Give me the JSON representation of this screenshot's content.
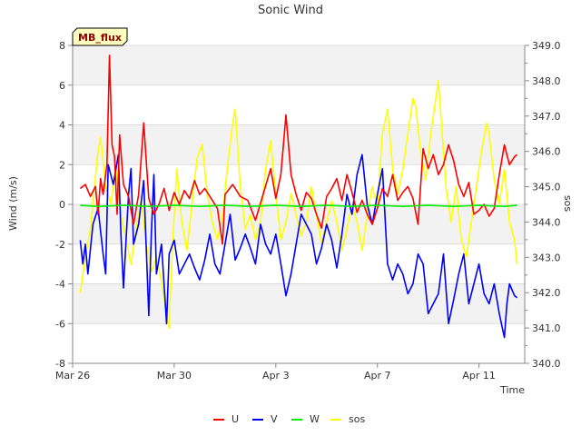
{
  "chart_data": {
    "type": "line",
    "title": "Sonic Wind",
    "xlabel": "Time",
    "ylabel": "Wind (m/s)",
    "y2label": "sos",
    "badge": "MB_flux",
    "x_ticks": [
      "Mar 26",
      "Mar 30",
      "Apr 3",
      "Apr 7",
      "Apr 11"
    ],
    "x_tick_days": [
      0,
      4,
      8,
      12,
      16
    ],
    "xlim_days": [
      0,
      17.8
    ],
    "ylim": [
      -8,
      8
    ],
    "y_ticks": [
      -8,
      -6,
      -4,
      -2,
      0,
      2,
      4,
      6,
      8
    ],
    "y2lim": [
      340.0,
      349.0
    ],
    "y2_ticks": [
      "340.0",
      "341.0",
      "342.0",
      "343.0",
      "344.0",
      "345.0",
      "346.0",
      "347.0",
      "348.0",
      "349.0"
    ],
    "y2_tick_values": [
      340,
      341,
      342,
      343,
      344,
      345,
      346,
      347,
      348,
      349
    ],
    "grid": "horizontal bands",
    "legend_position": "bottom-center",
    "series": [
      {
        "name": "U",
        "color": "#ff0000",
        "axis": "left",
        "points": [
          [
            0.3,
            0.8
          ],
          [
            0.5,
            1.0
          ],
          [
            0.7,
            0.4
          ],
          [
            0.9,
            0.9
          ],
          [
            1.0,
            -0.5
          ],
          [
            1.1,
            1.3
          ],
          [
            1.2,
            0.5
          ],
          [
            1.35,
            2.0
          ],
          [
            1.45,
            7.5
          ],
          [
            1.55,
            3.0
          ],
          [
            1.65,
            2.4
          ],
          [
            1.75,
            -0.5
          ],
          [
            1.85,
            3.5
          ],
          [
            2.0,
            1.0
          ],
          [
            2.2,
            0.4
          ],
          [
            2.4,
            -1.0
          ],
          [
            2.6,
            0.5
          ],
          [
            2.8,
            4.1
          ],
          [
            3.0,
            0.3
          ],
          [
            3.2,
            -0.5
          ],
          [
            3.4,
            0.0
          ],
          [
            3.6,
            0.8
          ],
          [
            3.8,
            -0.3
          ],
          [
            4.0,
            0.6
          ],
          [
            4.2,
            0.0
          ],
          [
            4.4,
            0.7
          ],
          [
            4.6,
            0.3
          ],
          [
            4.8,
            1.2
          ],
          [
            5.0,
            0.5
          ],
          [
            5.2,
            0.8
          ],
          [
            5.5,
            0.2
          ],
          [
            5.7,
            -0.2
          ],
          [
            5.9,
            -2.0
          ],
          [
            6.0,
            0.5
          ],
          [
            6.3,
            1.0
          ],
          [
            6.6,
            0.4
          ],
          [
            6.9,
            0.2
          ],
          [
            7.2,
            -0.8
          ],
          [
            7.5,
            0.5
          ],
          [
            7.8,
            1.8
          ],
          [
            8.0,
            0.3
          ],
          [
            8.2,
            1.5
          ],
          [
            8.4,
            4.5
          ],
          [
            8.6,
            1.5
          ],
          [
            8.8,
            0.5
          ],
          [
            9.0,
            -0.3
          ],
          [
            9.2,
            0.6
          ],
          [
            9.4,
            0.3
          ],
          [
            9.6,
            -0.5
          ],
          [
            9.8,
            -1.2
          ],
          [
            10.0,
            0.4
          ],
          [
            10.2,
            0.8
          ],
          [
            10.4,
            1.3
          ],
          [
            10.6,
            0.2
          ],
          [
            10.8,
            1.5
          ],
          [
            11.0,
            0.6
          ],
          [
            11.2,
            -0.4
          ],
          [
            11.4,
            0.2
          ],
          [
            11.6,
            -0.5
          ],
          [
            11.8,
            -1.0
          ],
          [
            12.0,
            -0.2
          ],
          [
            12.2,
            0.8
          ],
          [
            12.4,
            0.4
          ],
          [
            12.6,
            1.5
          ],
          [
            12.8,
            0.2
          ],
          [
            13.0,
            0.6
          ],
          [
            13.2,
            0.9
          ],
          [
            13.4,
            0.3
          ],
          [
            13.6,
            -1.0
          ],
          [
            13.8,
            2.8
          ],
          [
            14.0,
            1.8
          ],
          [
            14.2,
            2.5
          ],
          [
            14.4,
            1.5
          ],
          [
            14.6,
            2.0
          ],
          [
            14.8,
            3.0
          ],
          [
            15.0,
            2.2
          ],
          [
            15.2,
            1.0
          ],
          [
            15.4,
            0.4
          ],
          [
            15.6,
            1.1
          ],
          [
            15.8,
            -0.5
          ],
          [
            16.0,
            -0.3
          ],
          [
            16.2,
            0.0
          ],
          [
            16.4,
            -0.6
          ],
          [
            16.6,
            -0.2
          ],
          [
            16.8,
            1.5
          ],
          [
            17.0,
            3.0
          ],
          [
            17.2,
            2.0
          ],
          [
            17.4,
            2.4
          ],
          [
            17.5,
            2.5
          ]
        ]
      },
      {
        "name": "V",
        "color": "#0000ff",
        "axis": "left",
        "points": [
          [
            0.3,
            -1.8
          ],
          [
            0.4,
            -3.0
          ],
          [
            0.5,
            -2.0
          ],
          [
            0.6,
            -3.5
          ],
          [
            0.8,
            -1.0
          ],
          [
            1.0,
            -0.2
          ],
          [
            1.2,
            -2.5
          ],
          [
            1.3,
            -3.5
          ],
          [
            1.4,
            2.0
          ],
          [
            1.6,
            1.0
          ],
          [
            1.8,
            2.5
          ],
          [
            1.9,
            -1.5
          ],
          [
            2.0,
            -4.2
          ],
          [
            2.2,
            0.5
          ],
          [
            2.3,
            1.8
          ],
          [
            2.4,
            -2.0
          ],
          [
            2.6,
            -1.0
          ],
          [
            2.8,
            1.2
          ],
          [
            3.0,
            -5.6
          ],
          [
            3.1,
            -1.5
          ],
          [
            3.2,
            1.5
          ],
          [
            3.3,
            -3.5
          ],
          [
            3.5,
            -2.0
          ],
          [
            3.7,
            -6.0
          ],
          [
            3.8,
            -2.5
          ],
          [
            4.0,
            -1.8
          ],
          [
            4.2,
            -3.5
          ],
          [
            4.4,
            -3.0
          ],
          [
            4.6,
            -2.5
          ],
          [
            4.8,
            -3.2
          ],
          [
            5.0,
            -3.8
          ],
          [
            5.2,
            -2.8
          ],
          [
            5.4,
            -1.5
          ],
          [
            5.6,
            -3.0
          ],
          [
            5.8,
            -3.5
          ],
          [
            6.0,
            -2.0
          ],
          [
            6.2,
            -0.5
          ],
          [
            6.4,
            -2.8
          ],
          [
            6.6,
            -2.2
          ],
          [
            6.8,
            -1.5
          ],
          [
            7.0,
            -2.2
          ],
          [
            7.2,
            -3.0
          ],
          [
            7.4,
            -1.0
          ],
          [
            7.6,
            -2.0
          ],
          [
            7.8,
            -2.5
          ],
          [
            8.0,
            -1.5
          ],
          [
            8.2,
            -3.0
          ],
          [
            8.4,
            -4.6
          ],
          [
            8.6,
            -3.5
          ],
          [
            8.8,
            -2.0
          ],
          [
            9.0,
            -0.5
          ],
          [
            9.2,
            -1.0
          ],
          [
            9.4,
            -1.5
          ],
          [
            9.6,
            -3.0
          ],
          [
            9.8,
            -2.2
          ],
          [
            10.0,
            -1.0
          ],
          [
            10.2,
            -1.8
          ],
          [
            10.4,
            -3.2
          ],
          [
            10.6,
            -1.5
          ],
          [
            10.8,
            0.5
          ],
          [
            11.0,
            -0.5
          ],
          [
            11.2,
            1.5
          ],
          [
            11.4,
            2.5
          ],
          [
            11.6,
            0.0
          ],
          [
            11.8,
            -1.0
          ],
          [
            12.0,
            0.5
          ],
          [
            12.2,
            1.8
          ],
          [
            12.4,
            -3.0
          ],
          [
            12.6,
            -3.8
          ],
          [
            12.8,
            -3.0
          ],
          [
            13.0,
            -3.5
          ],
          [
            13.2,
            -4.5
          ],
          [
            13.4,
            -4.0
          ],
          [
            13.6,
            -2.5
          ],
          [
            13.8,
            -3.0
          ],
          [
            14.0,
            -5.5
          ],
          [
            14.2,
            -5.0
          ],
          [
            14.4,
            -4.5
          ],
          [
            14.6,
            -2.5
          ],
          [
            14.8,
            -6.0
          ],
          [
            15.0,
            -4.8
          ],
          [
            15.2,
            -3.5
          ],
          [
            15.4,
            -2.5
          ],
          [
            15.6,
            -5.0
          ],
          [
            15.8,
            -4.0
          ],
          [
            16.0,
            -3.0
          ],
          [
            16.2,
            -4.5
          ],
          [
            16.4,
            -5.0
          ],
          [
            16.6,
            -4.0
          ],
          [
            16.8,
            -5.5
          ],
          [
            17.0,
            -6.7
          ],
          [
            17.1,
            -5.0
          ],
          [
            17.2,
            -4.0
          ],
          [
            17.4,
            -4.6
          ],
          [
            17.5,
            -4.7
          ]
        ]
      },
      {
        "name": "W",
        "color": "#00ee00",
        "axis": "left",
        "points": [
          [
            0.3,
            -0.05
          ],
          [
            1.0,
            -0.1
          ],
          [
            2.0,
            -0.05
          ],
          [
            3.0,
            -0.1
          ],
          [
            4.0,
            -0.05
          ],
          [
            5.0,
            -0.1
          ],
          [
            6.0,
            -0.05
          ],
          [
            7.0,
            -0.1
          ],
          [
            8.0,
            -0.05
          ],
          [
            9.0,
            -0.1
          ],
          [
            10.0,
            -0.05
          ],
          [
            11.0,
            -0.1
          ],
          [
            12.0,
            -0.05
          ],
          [
            13.0,
            -0.1
          ],
          [
            14.0,
            -0.05
          ],
          [
            15.0,
            -0.1
          ],
          [
            16.0,
            -0.05
          ],
          [
            17.0,
            -0.1
          ],
          [
            17.5,
            -0.05
          ]
        ]
      },
      {
        "name": "sos",
        "color": "#ffff00",
        "axis": "right",
        "points": [
          [
            0.3,
            342.0
          ],
          [
            0.5,
            343.0
          ],
          [
            0.7,
            343.8
          ],
          [
            0.9,
            345.3
          ],
          [
            1.0,
            346.0
          ],
          [
            1.1,
            346.4
          ],
          [
            1.3,
            345.0
          ],
          [
            1.5,
            344.5
          ],
          [
            1.7,
            345.5
          ],
          [
            1.9,
            344.2
          ],
          [
            2.1,
            343.5
          ],
          [
            2.3,
            342.8
          ],
          [
            2.5,
            343.8
          ],
          [
            2.7,
            344.6
          ],
          [
            2.9,
            343.4
          ],
          [
            3.1,
            342.6
          ],
          [
            3.3,
            343.0
          ],
          [
            3.5,
            342.3
          ],
          [
            3.7,
            341.4
          ],
          [
            3.8,
            341.0
          ],
          [
            3.9,
            342.8
          ],
          [
            4.0,
            344.2
          ],
          [
            4.1,
            345.5
          ],
          [
            4.3,
            344.0
          ],
          [
            4.5,
            343.2
          ],
          [
            4.7,
            344.5
          ],
          [
            4.9,
            345.8
          ],
          [
            5.1,
            346.2
          ],
          [
            5.3,
            344.8
          ],
          [
            5.5,
            344.0
          ],
          [
            5.7,
            343.5
          ],
          [
            5.9,
            344.2
          ],
          [
            6.1,
            345.6
          ],
          [
            6.3,
            346.8
          ],
          [
            6.4,
            347.2
          ],
          [
            6.6,
            345.0
          ],
          [
            6.8,
            343.8
          ],
          [
            7.0,
            344.2
          ],
          [
            7.2,
            343.5
          ],
          [
            7.4,
            344.0
          ],
          [
            7.6,
            345.5
          ],
          [
            7.8,
            346.3
          ],
          [
            8.0,
            344.8
          ],
          [
            8.2,
            343.5
          ],
          [
            8.4,
            344.0
          ],
          [
            8.6,
            344.8
          ],
          [
            8.8,
            344.2
          ],
          [
            9.0,
            343.6
          ],
          [
            9.2,
            344.0
          ],
          [
            9.4,
            345.0
          ],
          [
            9.6,
            344.2
          ],
          [
            9.8,
            343.4
          ],
          [
            10.0,
            344.0
          ],
          [
            10.2,
            344.6
          ],
          [
            10.4,
            344.0
          ],
          [
            10.6,
            343.2
          ],
          [
            10.8,
            343.8
          ],
          [
            11.0,
            344.5
          ],
          [
            11.2,
            344.0
          ],
          [
            11.4,
            343.2
          ],
          [
            11.6,
            344.2
          ],
          [
            11.8,
            345.0
          ],
          [
            12.0,
            344.4
          ],
          [
            12.2,
            346.5
          ],
          [
            12.4,
            347.2
          ],
          [
            12.6,
            345.5
          ],
          [
            12.8,
            344.8
          ],
          [
            13.0,
            345.5
          ],
          [
            13.2,
            346.5
          ],
          [
            13.4,
            347.5
          ],
          [
            13.5,
            347.3
          ],
          [
            13.7,
            346.0
          ],
          [
            13.9,
            345.2
          ],
          [
            14.1,
            346.5
          ],
          [
            14.3,
            347.5
          ],
          [
            14.4,
            348.0
          ],
          [
            14.5,
            347.0
          ],
          [
            14.7,
            345.0
          ],
          [
            14.9,
            344.0
          ],
          [
            15.1,
            345.0
          ],
          [
            15.3,
            343.5
          ],
          [
            15.5,
            343.0
          ],
          [
            15.7,
            344.0
          ],
          [
            15.9,
            345.0
          ],
          [
            16.1,
            346.0
          ],
          [
            16.3,
            346.8
          ],
          [
            16.4,
            346.5
          ],
          [
            16.6,
            345.2
          ],
          [
            16.8,
            344.5
          ],
          [
            17.0,
            345.5
          ],
          [
            17.2,
            344.0
          ],
          [
            17.4,
            343.5
          ],
          [
            17.5,
            342.8
          ]
        ]
      }
    ]
  }
}
